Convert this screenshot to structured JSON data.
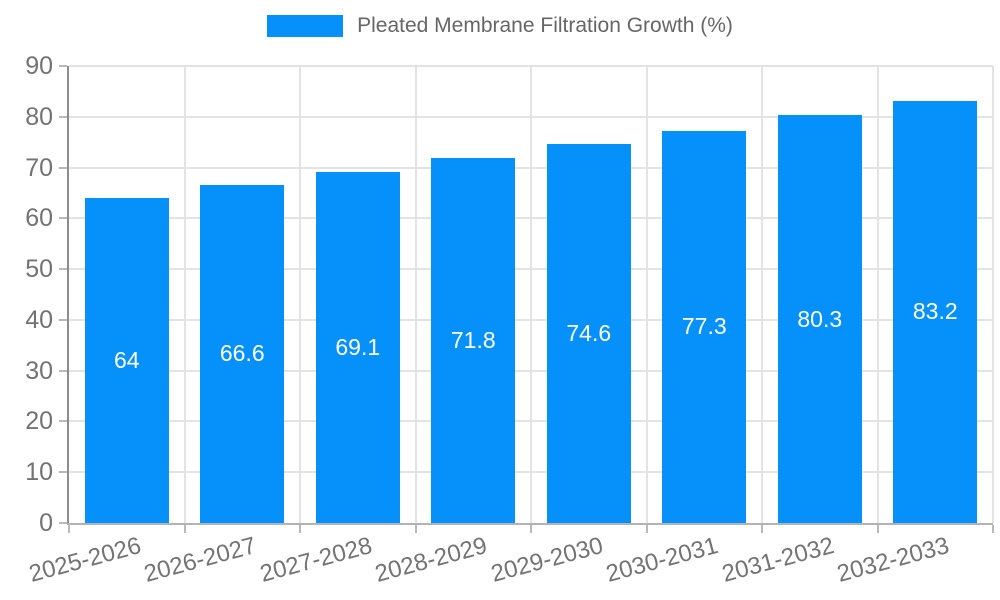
{
  "chart_data": {
    "type": "bar",
    "legend": "Pleated Membrane Filtration Growth (%)",
    "legend_position": "top",
    "categories": [
      "2025-2026",
      "2026-2027",
      "2027-2028",
      "2028-2029",
      "2029-2030",
      "2030-2031",
      "2031-2032",
      "2032-2033"
    ],
    "values": [
      64,
      66.6,
      69.1,
      71.8,
      74.6,
      77.3,
      80.3,
      83.2
    ],
    "value_labels": [
      "64",
      "66.6",
      "69.1",
      "71.8",
      "74.6",
      "77.3",
      "80.3",
      "83.2"
    ],
    "xlabel": "",
    "ylabel": "",
    "ylim": [
      0,
      90
    ],
    "y_ticks": [
      0,
      10,
      20,
      30,
      40,
      50,
      60,
      70,
      80,
      90
    ],
    "grid": true,
    "colors": {
      "bar": "#0590fa",
      "value_label": "#ffffff",
      "axis_text": "#737373",
      "legend_text": "#666666",
      "gridline": "#e3e3e3",
      "y_axis_line": "#8c8c8c",
      "x_axis_line": "#b3b3b3"
    }
  }
}
